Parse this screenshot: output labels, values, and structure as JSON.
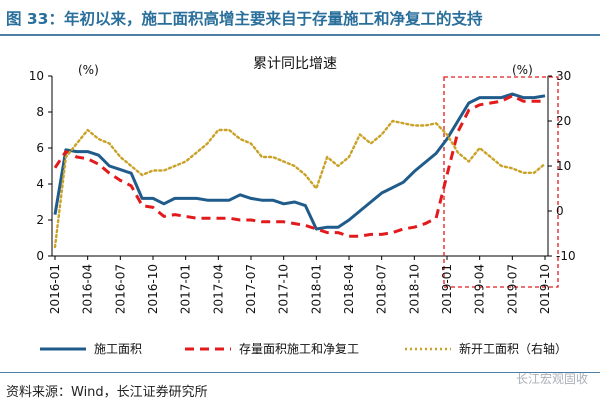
{
  "header": {
    "title": "图 33：年初以来，施工面积高增主要来自于存量施工和净复工的支持"
  },
  "footer": {
    "source": "资料来源：Wind，长江证券研究所",
    "watermark": "长江宏观固收"
  },
  "chart_data": {
    "type": "line",
    "title": "累计同比增速",
    "left_unit": "(%)",
    "right_unit": "(%)",
    "ylim_left": [
      0,
      10
    ],
    "yticks_left": [
      "0",
      "2",
      "4",
      "6",
      "8",
      "10"
    ],
    "ylim_right": [
      -10,
      30
    ],
    "yticks_right": [
      "-10",
      "0",
      "10",
      "20",
      "30"
    ],
    "x": [
      "2016-01",
      "2016-02",
      "2016-03",
      "2016-04",
      "2016-05",
      "2016-06",
      "2016-07",
      "2016-08",
      "2016-09",
      "2016-10",
      "2016-11",
      "2016-12",
      "2017-01",
      "2017-02",
      "2017-03",
      "2017-04",
      "2017-05",
      "2017-06",
      "2017-07",
      "2017-08",
      "2017-09",
      "2017-10",
      "2017-11",
      "2017-12",
      "2018-01",
      "2018-02",
      "2018-03",
      "2018-04",
      "2018-05",
      "2018-06",
      "2018-07",
      "2018-08",
      "2018-09",
      "2018-10",
      "2018-11",
      "2018-12",
      "2019-01",
      "2019-02",
      "2019-03",
      "2019-04",
      "2019-05",
      "2019-06",
      "2019-07",
      "2019-08",
      "2019-09",
      "2019-10"
    ],
    "xtick_labels": [
      "2016-01",
      "2016-04",
      "2016-07",
      "2016-10",
      "2017-01",
      "2017-04",
      "2017-07",
      "2017-10",
      "2018-01",
      "2018-04",
      "2018-07",
      "2018-10",
      "2019-01",
      "2019-04",
      "2019-07",
      "2019-10"
    ],
    "series": [
      {
        "name": "施工面积",
        "axis": "left",
        "color": "#1f5c8b",
        "style": "solid",
        "values": [
          2.3,
          5.9,
          5.8,
          5.8,
          5.6,
          5.0,
          4.8,
          4.6,
          3.2,
          3.2,
          2.9,
          3.2,
          3.2,
          3.2,
          3.1,
          3.1,
          3.1,
          3.4,
          3.2,
          3.1,
          3.1,
          2.9,
          3.0,
          2.8,
          1.5,
          1.6,
          1.6,
          2.0,
          2.5,
          3.0,
          3.5,
          3.8,
          4.1,
          4.7,
          5.2,
          5.7,
          6.5,
          7.5,
          8.5,
          8.8,
          8.8,
          8.8,
          9.0,
          8.8,
          8.8,
          8.9
        ]
      },
      {
        "name": "存量面积施工和净复工",
        "axis": "left",
        "color": "#e31a1c",
        "style": "dashed",
        "values": [
          4.9,
          5.8,
          5.5,
          5.4,
          5.1,
          4.6,
          4.2,
          3.9,
          2.8,
          2.7,
          2.2,
          2.3,
          2.2,
          2.1,
          2.1,
          2.1,
          2.1,
          2.0,
          2.0,
          1.9,
          1.9,
          1.9,
          1.8,
          1.7,
          1.5,
          1.3,
          1.3,
          1.1,
          1.1,
          1.2,
          1.2,
          1.3,
          1.5,
          1.6,
          1.8,
          2.1,
          4.5,
          6.9,
          8.1,
          8.4,
          8.5,
          8.6,
          8.9,
          8.6,
          8.6,
          8.6
        ]
      },
      {
        "name": "新开工面积（右轴）",
        "axis": "right",
        "color": "#c9a227",
        "style": "dotted",
        "values": [
          -8.0,
          12.0,
          15.0,
          18.0,
          16.0,
          15.0,
          12.0,
          10.0,
          8.0,
          9.0,
          9.0,
          10.0,
          11.0,
          13.0,
          15.0,
          18.0,
          18.0,
          16.0,
          15.0,
          12.0,
          12.0,
          11.0,
          10.0,
          8.0,
          5.0,
          12.0,
          10.0,
          12.0,
          17.0,
          15.0,
          17.0,
          20.0,
          19.5,
          19.0,
          19.0,
          19.5,
          17.0,
          13.0,
          11.0,
          14.0,
          12.0,
          10.0,
          9.5,
          8.5,
          8.5,
          10.5
        ]
      }
    ],
    "highlight_box": {
      "from": "2019-01",
      "to": "2019-10",
      "color": "#e31a1c",
      "style": "dashed"
    },
    "legend_position": "bottom"
  }
}
